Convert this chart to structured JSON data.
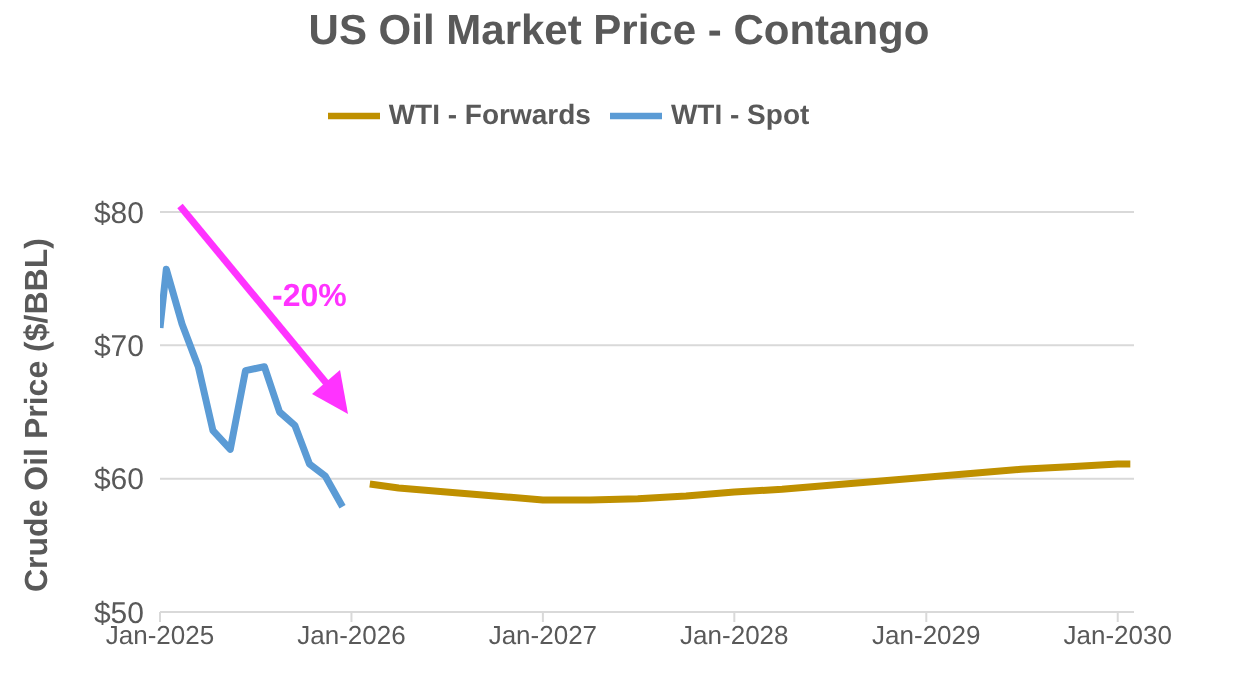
{
  "chart_data": {
    "type": "line",
    "title": "US Oil Market Price - Contango",
    "ylabel": "Crude Oil Price ($/BBL)",
    "annotations": [
      "-20%"
    ],
    "series": [
      {
        "name": "WTI - Spot",
        "color": "#5b9bd5",
        "x": [
          "2025-01-01",
          "2025-01-13",
          "2025-02-12",
          "2025-03-15",
          "2025-04-12",
          "2025-05-15",
          "2025-06-13",
          "2025-07-19",
          "2025-08-17",
          "2025-09-15",
          "2025-10-13",
          "2025-11-12",
          "2025-12-15"
        ],
        "values": [
          71.3,
          75.7,
          71.6,
          68.4,
          63.6,
          62.2,
          68.1,
          68.4,
          65.0,
          64.0,
          61.1,
          60.2,
          57.9
        ]
      },
      {
        "name": "WTI - Forwards",
        "color": "#bf9000",
        "x": [
          "2026-02-05",
          "2026-04-01",
          "2026-07-01",
          "2026-10-01",
          "2027-01-01",
          "2027-04-01",
          "2027-07-01",
          "2027-10-01",
          "2028-01-01",
          "2028-04-01",
          "2028-07-01",
          "2028-10-01",
          "2029-01-01",
          "2029-04-01",
          "2029-07-01",
          "2029-10-01",
          "2030-01-01",
          "2030-01-25"
        ],
        "values": [
          59.6,
          59.3,
          59.0,
          58.7,
          58.4,
          58.4,
          58.5,
          58.7,
          59.0,
          59.2,
          59.5,
          59.8,
          60.1,
          60.4,
          60.7,
          60.9,
          61.1,
          61.1
        ]
      }
    ],
    "xlim": [
      "2025-01-01",
      "2030-02-01"
    ],
    "xticks": [
      {
        "value": "2025-01-01",
        "label": "Jan-2025"
      },
      {
        "value": "2026-01-01",
        "label": "Jan-2026"
      },
      {
        "value": "2027-01-01",
        "label": "Jan-2027"
      },
      {
        "value": "2028-01-01",
        "label": "Jan-2028"
      },
      {
        "value": "2029-01-01",
        "label": "Jan-2029"
      },
      {
        "value": "2030-01-01",
        "label": "Jan-2030"
      }
    ],
    "ylim": [
      50,
      80
    ],
    "yticks": [
      {
        "value": 50,
        "label": "$50"
      },
      {
        "value": 60,
        "label": "$60"
      },
      {
        "value": 70,
        "label": "$70"
      },
      {
        "value": 80,
        "label": "$80"
      }
    ],
    "grid": "y",
    "legend": "top",
    "marker": "none",
    "line_style": "solid"
  }
}
